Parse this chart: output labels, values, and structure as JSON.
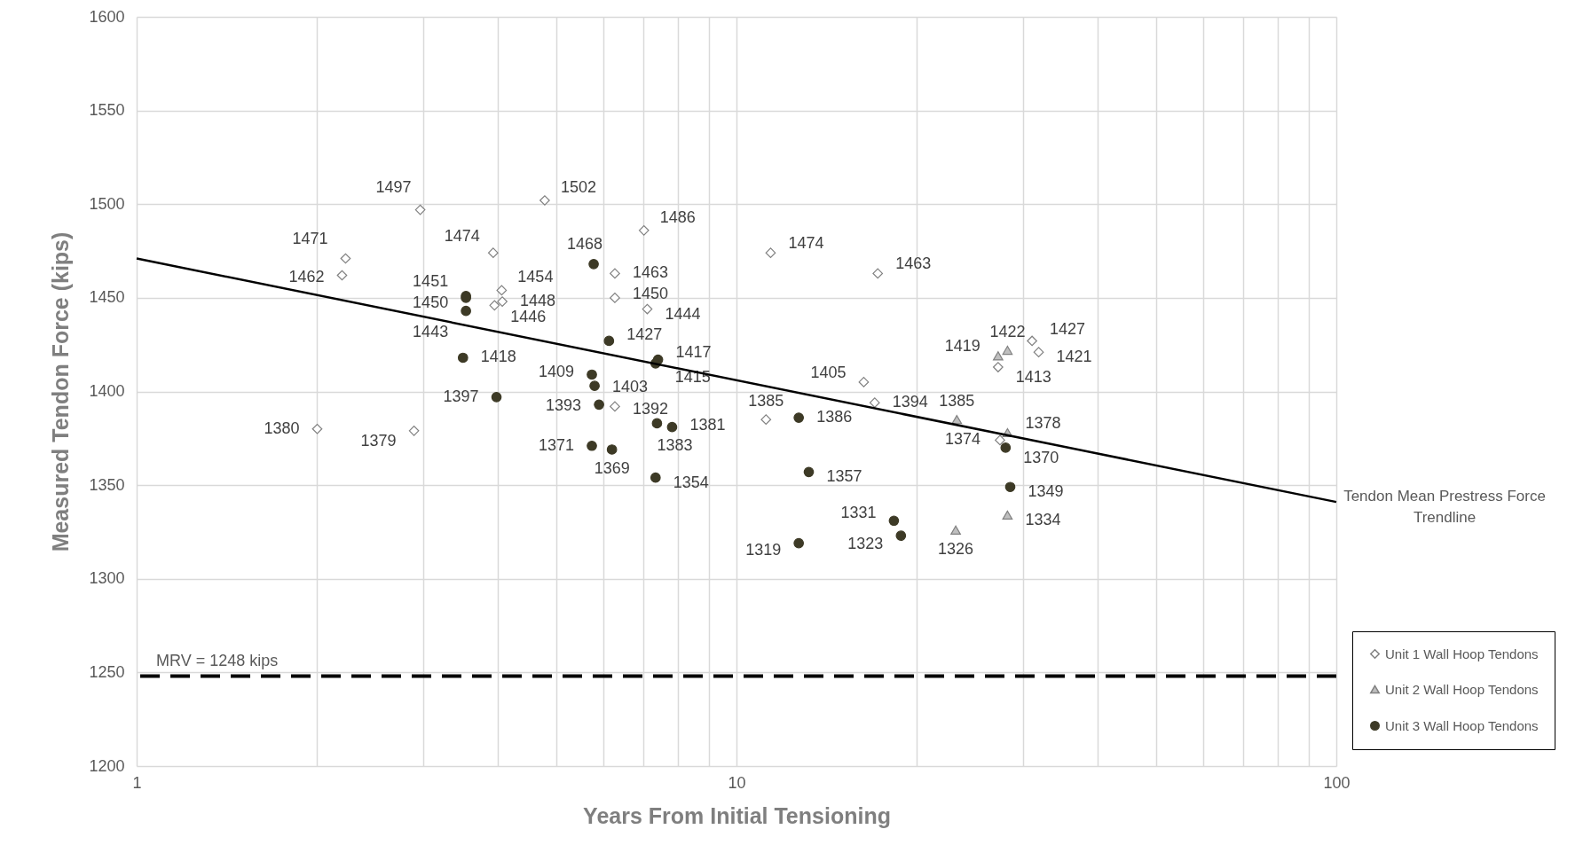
{
  "chart_data": {
    "type": "scatter",
    "xlabel": "Years From Initial Tensioning",
    "ylabel": "Measured Tendon Force (kips)",
    "log": "x",
    "xlim": [
      1,
      100
    ],
    "xticks": [
      1,
      {
        "value": 2,
        "label": null
      },
      {
        "value": 3,
        "label": null
      },
      {
        "value": 4,
        "label": null
      },
      {
        "value": 5,
        "label": null
      },
      {
        "value": 6,
        "label": null
      },
      {
        "value": 7,
        "label": null
      },
      {
        "value": 8,
        "label": null
      },
      {
        "value": 9,
        "label": null
      },
      10,
      {
        "value": 20,
        "label": null
      },
      {
        "value": 30,
        "label": null
      },
      {
        "value": 40,
        "label": null
      },
      {
        "value": 50,
        "label": null
      },
      {
        "value": 60,
        "label": null
      },
      {
        "value": 70,
        "label": null
      },
      {
        "value": 80,
        "label": null
      },
      {
        "value": 90,
        "label": null
      },
      100
    ],
    "ylim": [
      1200,
      1600
    ],
    "yticks": [
      1200,
      1250,
      1300,
      1350,
      1400,
      1450,
      1500,
      1550,
      1600
    ],
    "grid": true,
    "legend": "bottom right",
    "series": [
      {
        "name": "Unit 1 Wall Hoop Tendons",
        "marker": "diamond",
        "color": "#ffffff",
        "x": [
          2.23,
          2.2,
          2.0,
          2.9,
          2.97,
          3.93,
          4.06,
          4.07,
          3.95,
          4.79,
          7.01,
          6.27,
          6.27,
          7.1,
          6.27,
          11.4,
          11.2,
          17.2,
          16.3,
          17.0,
          31.1,
          31.9,
          27.3,
          27.5
        ],
        "values": [
          1471,
          1462,
          1380,
          1379,
          1497,
          1474,
          1454,
          1448,
          1446,
          1502,
          1486,
          1463,
          1450,
          1444,
          1392,
          1474,
          1385,
          1463,
          1405,
          1394,
          1427,
          1421,
          1413,
          1374
        ],
        "value_labels": [
          "1471",
          "1462",
          "1380",
          "1379",
          "1497",
          "1474",
          "1454",
          "1448",
          "1446",
          "1502",
          "1486",
          "1463",
          "1450",
          "1444",
          "1392",
          "1474",
          "1385",
          "1463",
          "1405",
          "1394",
          "1427",
          "1421",
          "1413",
          "1374"
        ]
      },
      {
        "name": "Unit 2 Wall Hoop Tendons",
        "marker": "triangle",
        "color": "#bfbfbf",
        "x": [
          27.3,
          28.3,
          23.3,
          28.3,
          28.3,
          23.2
        ],
        "values": [
          1419,
          1422,
          1385,
          1378,
          1334,
          1326
        ],
        "value_labels": [
          "1419",
          "1422",
          "1385",
          "1378",
          "1334",
          "1326"
        ]
      },
      {
        "name": "Unit 3 Wall Hoop Tendons",
        "marker": "circle",
        "color": "#3d3a26",
        "x": [
          5.78,
          3.54,
          3.54,
          3.54,
          3.5,
          3.98,
          6.13,
          7.4,
          7.33,
          5.74,
          5.8,
          5.9,
          5.74,
          6.2,
          7.37,
          7.81,
          7.33,
          12.7,
          13.2,
          12.7,
          18.3,
          18.8,
          28.1,
          28.6
        ],
        "values": [
          1468,
          1451,
          1450,
          1443,
          1418,
          1397,
          1427,
          1417,
          1415,
          1409,
          1403,
          1393,
          1371,
          1369,
          1383,
          1381,
          1354,
          1386,
          1357,
          1319,
          1331,
          1323,
          1370,
          1349
        ],
        "value_labels": [
          "1468",
          "1451",
          "1450",
          "1443",
          "1418",
          "1397",
          "1427",
          "1417",
          "1415",
          "1409",
          "1403",
          "1393",
          "1371",
          "1369",
          "1383",
          "1381",
          "1354",
          "1386",
          "1357",
          "1319",
          "1331",
          "1323",
          "1370",
          "1349"
        ]
      },
      {
        "name": "Tendon Mean Prestress Force Trendline",
        "type": "line",
        "marker": "none",
        "color": "#000000",
        "x": [
          1,
          100
        ],
        "values": [
          1471,
          1341
        ]
      }
    ],
    "ref_lines": [
      {
        "axis": "y",
        "value": 1248,
        "label": "MRV = 1248 kips",
        "color": "#000000",
        "line_style": "dashed"
      }
    ]
  }
}
